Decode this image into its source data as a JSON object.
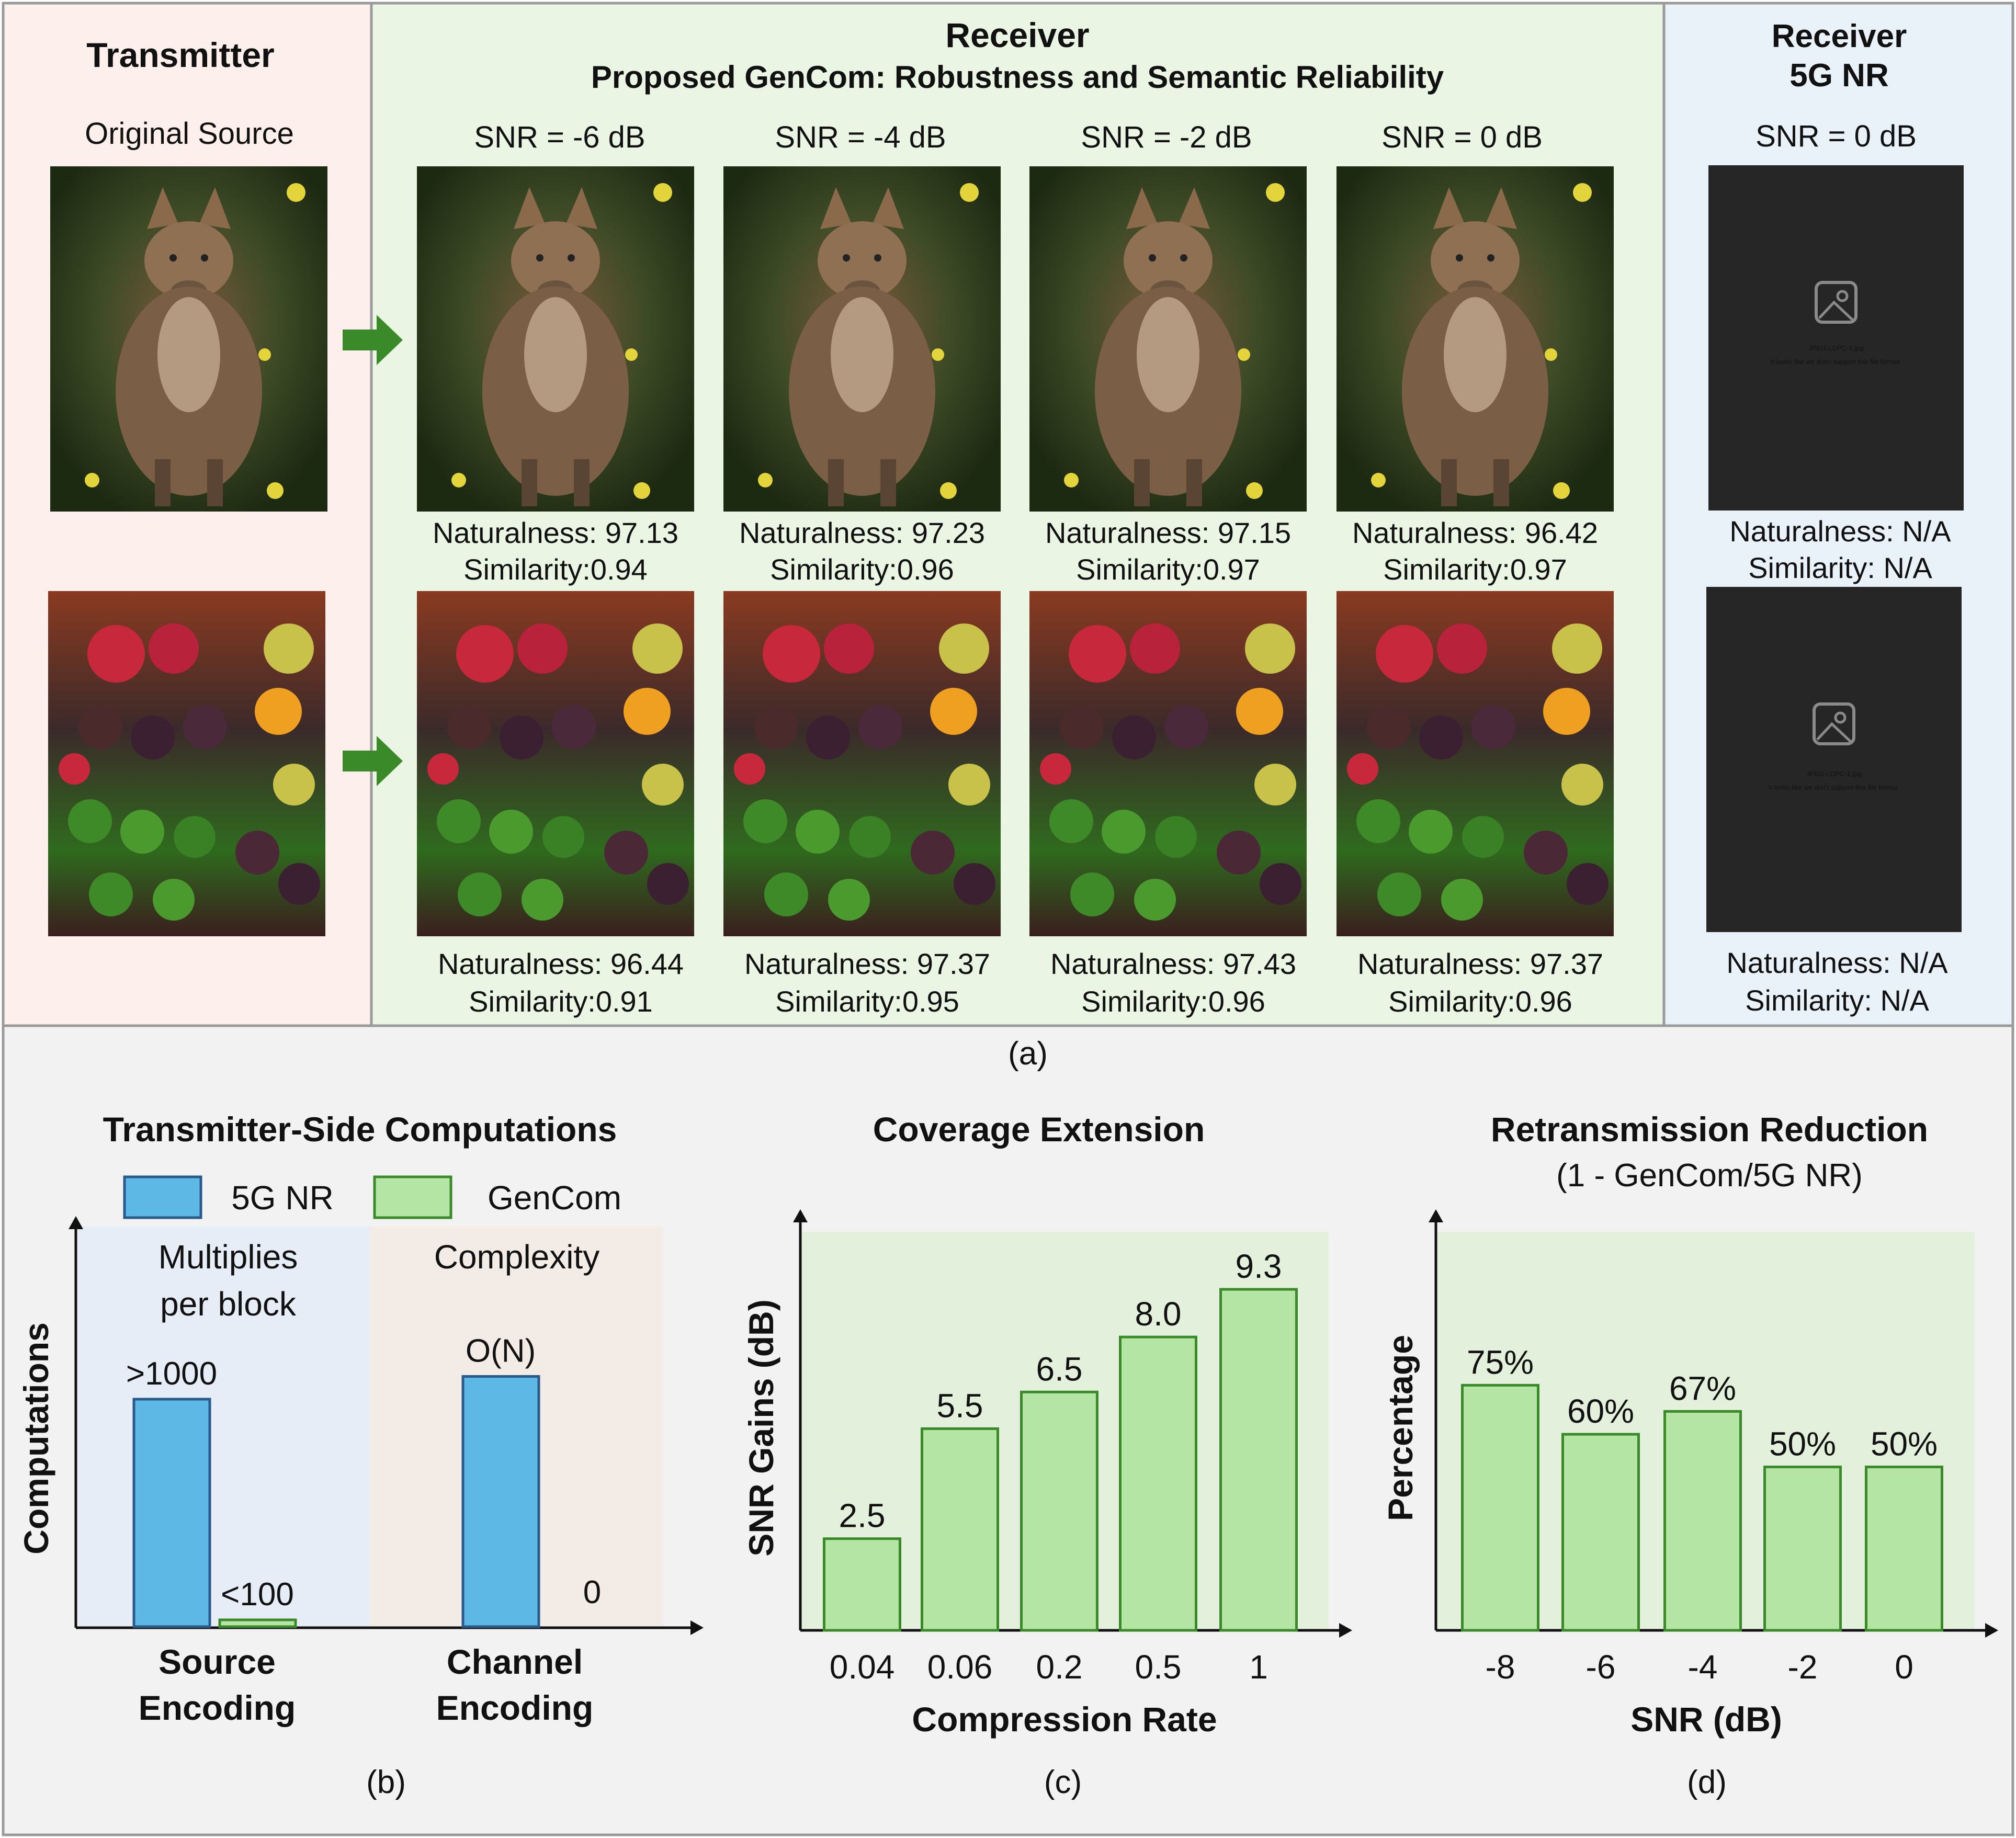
{
  "panel_a": {
    "transmitter_title": "Transmitter",
    "source_label": "Original Source",
    "receiver_title": "Receiver",
    "receiver_subtitle": "Proposed GenCom: Robustness and Semantic Reliability",
    "snr_columns": [
      "SNR = -6 dB",
      "SNR = -4 dB",
      "SNR = -2 dB",
      "SNR = 0 dB"
    ],
    "row1_metrics": [
      {
        "naturalness": "Naturalness: 97.13",
        "similarity": "Similarity:0.94"
      },
      {
        "naturalness": "Naturalness: 97.23",
        "similarity": "Similarity:0.96"
      },
      {
        "naturalness": "Naturalness: 97.15",
        "similarity": "Similarity:0.97"
      },
      {
        "naturalness": "Naturalness: 96.42",
        "similarity": "Similarity:0.97"
      }
    ],
    "row2_metrics": [
      {
        "naturalness": "Naturalness: 96.44",
        "similarity": "Similarity:0.91"
      },
      {
        "naturalness": "Naturalness: 97.37",
        "similarity": "Similarity:0.95"
      },
      {
        "naturalness": "Naturalness: 97.43",
        "similarity": "Similarity:0.96"
      },
      {
        "naturalness": "Naturalness: 97.37",
        "similarity": "Similarity:0.96"
      }
    ],
    "nr_title_1": "Receiver",
    "nr_title_2": "5G NR",
    "nr_snr": "SNR = 0 dB",
    "nr_metrics": [
      {
        "naturalness": "Naturalness: N/A",
        "similarity": "Similarity: N/A"
      },
      {
        "naturalness": "Naturalness: N/A",
        "similarity": "Similarity: N/A"
      }
    ],
    "broken_file_name": "JPEG-LDPC-1.jpg",
    "broken_file_message": "It looks like we don't support this file format.",
    "caption": "(a)",
    "colors": {
      "tx_bg": "#fdf0ec",
      "rx_bg": "#eaf5e3",
      "nr_bg": "#e9f1f9",
      "arrow": "#3a8a2a"
    }
  },
  "panel_b": {
    "title": "Transmitter-Side Computations",
    "ylabel": "Computations",
    "legend": [
      {
        "label": "5G NR",
        "color": "#5db8e6"
      },
      {
        "label": "GenCom",
        "color": "#b5e5a4"
      }
    ],
    "groups": [
      {
        "label_line1": "Source",
        "label_line2": "Encoding",
        "header_line1": "Multiplies",
        "header_line2": "per block",
        "values": [
          1000,
          30
        ],
        "labels": [
          ">1000",
          "<100"
        ],
        "bg": "#e6edf6"
      },
      {
        "label_line1": "Channel",
        "label_line2": "Encoding",
        "header_line1": "Complexity",
        "header_line2": "",
        "values": [
          1100,
          0
        ],
        "labels": [
          "O(N)",
          "0"
        ],
        "bg": "#f3ebe6"
      }
    ],
    "caption": "(b)"
  },
  "chart_data": [
    {
      "type": "bar",
      "title": "Coverage Extension",
      "xlabel": "Compression Rate",
      "ylabel": "SNR Gains (dB)",
      "categories": [
        "0.04",
        "0.06",
        "0.2",
        "0.5",
        "1"
      ],
      "values": [
        2.5,
        5.5,
        6.5,
        8.0,
        9.3
      ],
      "value_labels": [
        "2.5",
        "5.5",
        "6.5",
        "8.0",
        "9.3"
      ],
      "ylim": [
        0,
        10
      ],
      "grid": false,
      "bar_color": "#b5e5a4",
      "caption": "(c)"
    },
    {
      "type": "bar",
      "title": "Retransmission Reduction",
      "subtitle": "(1 - GenCom/5G NR)",
      "xlabel": "SNR (dB)",
      "ylabel": "Percentage",
      "categories": [
        "-8",
        "-6",
        "-4",
        "-2",
        "0"
      ],
      "values": [
        75,
        60,
        67,
        50,
        50
      ],
      "value_labels": [
        "75%",
        "60%",
        "67%",
        "50%",
        "50%"
      ],
      "ylim": [
        0,
        100
      ],
      "grid": false,
      "bar_color": "#b5e5a4",
      "caption": "(d)"
    }
  ]
}
